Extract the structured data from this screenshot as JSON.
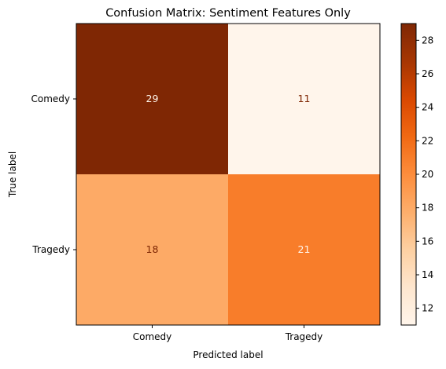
{
  "chart_data": {
    "type": "heatmap",
    "title": "Confusion Matrix: Sentiment Features Only",
    "xlabel": "Predicted label",
    "ylabel": "True label",
    "x_categories": [
      "Comedy",
      "Tragedy"
    ],
    "y_categories": [
      "Comedy",
      "Tragedy"
    ],
    "values": [
      [
        29,
        11
      ],
      [
        18,
        21
      ]
    ],
    "colormap": "Oranges",
    "color_range": [
      11,
      29
    ],
    "colorbar_ticks": [
      "12",
      "14",
      "16",
      "18",
      "20",
      "22",
      "24",
      "26",
      "28"
    ],
    "colors": {
      "low": "#fff5eb",
      "high": "#7f2704",
      "text_on_dark": "#fff5eb",
      "text_on_light": "#7f2704"
    }
  }
}
